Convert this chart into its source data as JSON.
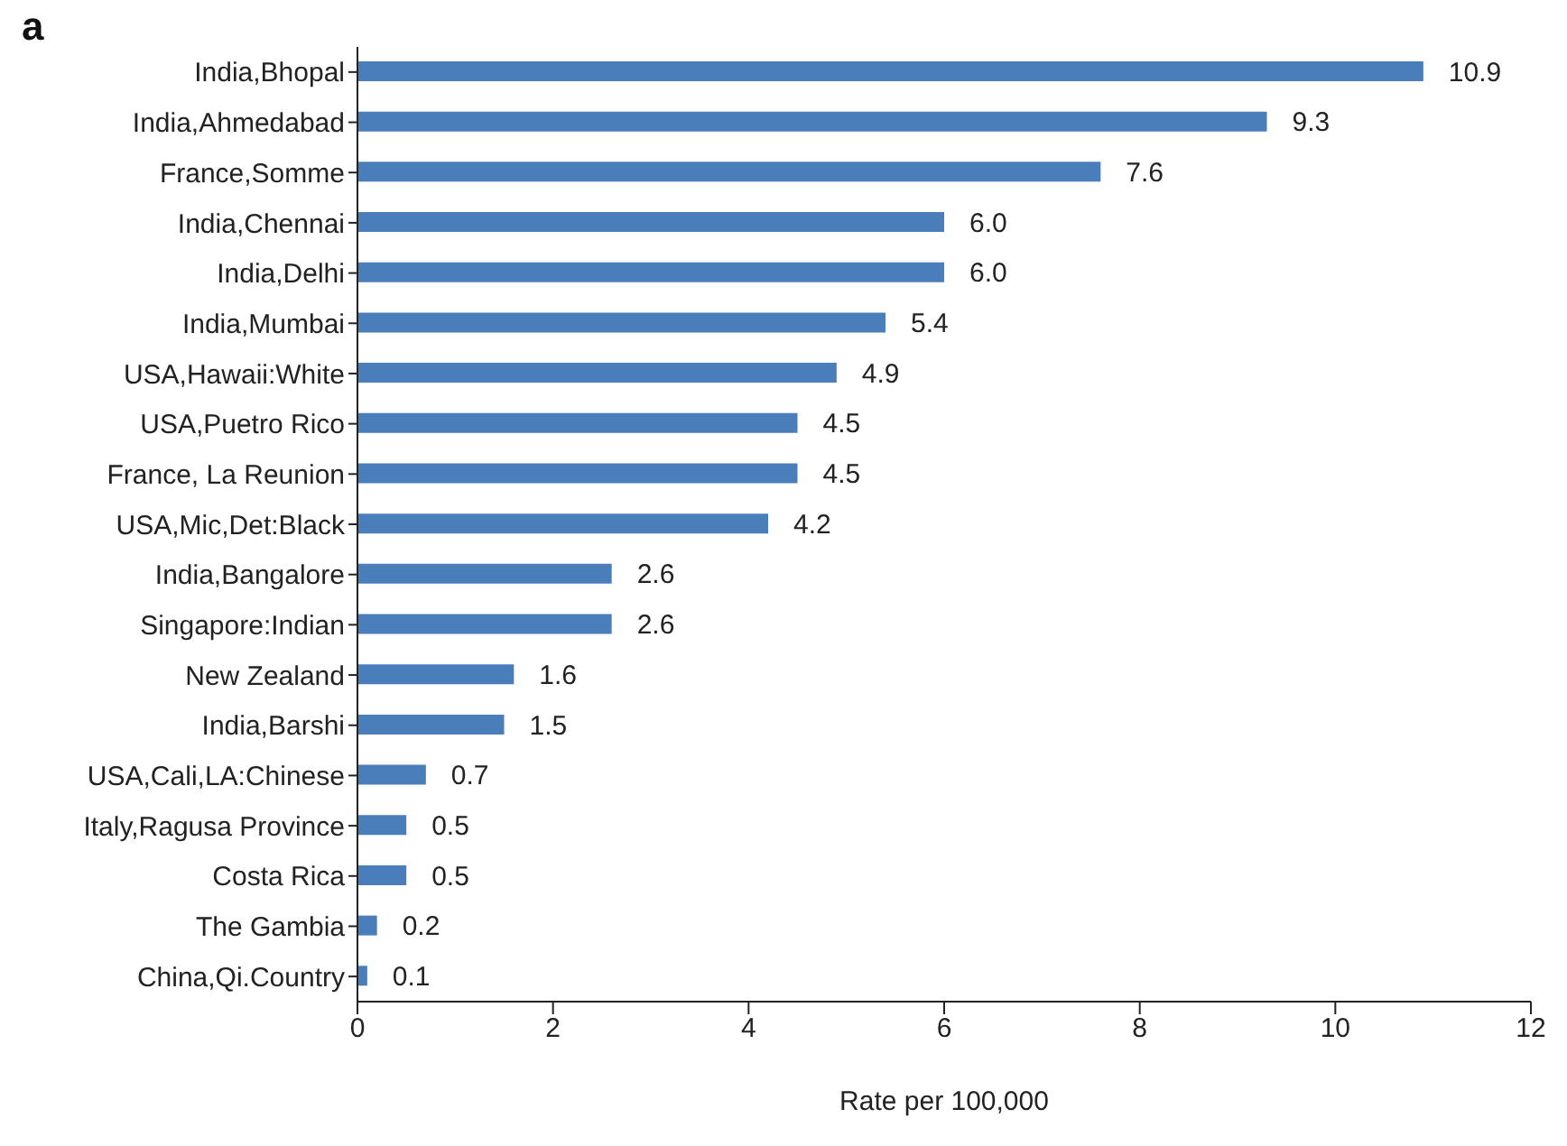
{
  "chart_data": {
    "type": "bar",
    "orientation": "horizontal",
    "title": "a",
    "xlabel": "Rate per 100,000",
    "categories": [
      "India,Bhopal",
      "India,Ahmedabad",
      "France,Somme",
      "India,Chennai",
      "India,Delhi",
      "India,Mumbai",
      "USA,Hawaii:White",
      "USA,Puetro Rico",
      "France, La Reunion",
      "USA,Mic,Det:Black",
      "India,Bangalore",
      "Singapore:Indian",
      "New Zealand",
      "India,Barshi",
      "USA,Cali,LA:Chinese",
      "Italy,Ragusa Province",
      "Costa Rica",
      "The Gambia",
      "China,Qi.Country"
    ],
    "values": [
      10.9,
      9.3,
      7.6,
      6.0,
      6.0,
      5.4,
      4.9,
      4.5,
      4.5,
      4.2,
      2.6,
      2.6,
      1.6,
      1.5,
      0.7,
      0.5,
      0.5,
      0.2,
      0.1
    ],
    "value_labels": [
      "10.9",
      "9.3",
      "7.6",
      "6.0",
      "6.0",
      "5.4",
      "4.9",
      "4.5",
      "4.5",
      "4.2",
      "2.6",
      "2.6",
      "1.6",
      "1.5",
      "0.7",
      "0.5",
      "0.5",
      "0.2",
      "0.1"
    ],
    "color": "#4a7ebb",
    "xlim": [
      0,
      12
    ],
    "xticks": [
      0,
      2,
      4,
      6,
      8,
      10,
      12
    ],
    "grid": false,
    "legend": false
  }
}
